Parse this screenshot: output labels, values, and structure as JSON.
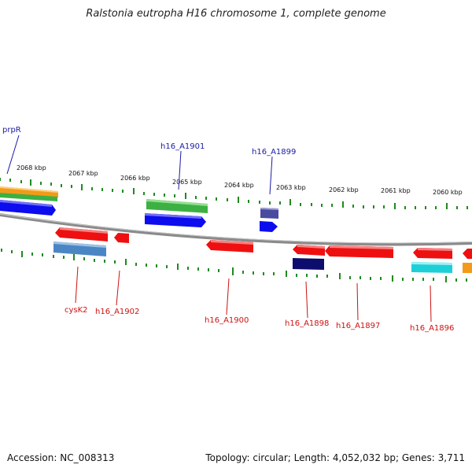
{
  "title": "Ralstonia eutropha H16 chromosome 1, complete genome",
  "footer": {
    "accession": "Accession: NC_008313",
    "topology": "Topology: circular; Length: 4,052,032 bp; Genes: 3,711"
  },
  "colors": {
    "forward_label": "#1a1aa6",
    "reverse_label": "#cc1111",
    "backbone": "#8a8a8a",
    "tick": "#1e8a1e"
  },
  "scale_ticks": [
    "2068 kbp",
    "2067 kbp",
    "2066 kbp",
    "2065 kbp",
    "2064 kbp",
    "2063 kbp",
    "2062 kbp",
    "2061 kbp",
    "2060 kbp"
  ],
  "gene_labels": {
    "forward": [
      "prpR",
      "h16_A1901",
      "h16_A1899"
    ],
    "reverse": [
      "cysK2",
      "h16_A1902",
      "h16_A1900",
      "h16_A1898",
      "h16_A1897",
      "h16_A1896"
    ]
  }
}
